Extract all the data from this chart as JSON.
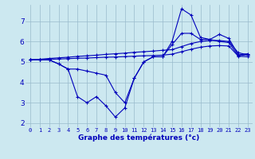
{
  "xlabel": "Graphe des températures (°c)",
  "bg_color": "#cce8f0",
  "line_color": "#0000bb",
  "grid_color": "#99bbcc",
  "ylim": [
    1.8,
    7.8
  ],
  "xlim": [
    -0.5,
    23.5
  ],
  "yticks": [
    2,
    3,
    4,
    5,
    6,
    7
  ],
  "x_labels": [
    "0",
    "1",
    "2",
    "3",
    "4",
    "5",
    "6",
    "7",
    "8",
    "9",
    "10",
    "11",
    "12",
    "13",
    "14",
    "15",
    "16",
    "17",
    "18",
    "19",
    "20",
    "21",
    "22",
    "23"
  ],
  "series": {
    "line1": [
      5.1,
      5.1,
      5.1,
      4.9,
      4.65,
      3.3,
      3.0,
      3.3,
      2.85,
      2.3,
      2.75,
      4.2,
      5.0,
      5.25,
      5.25,
      6.0,
      7.6,
      7.3,
      6.2,
      6.1,
      6.35,
      6.15,
      5.35,
      5.4
    ],
    "line2": [
      5.1,
      5.1,
      5.1,
      4.9,
      4.65,
      4.65,
      4.55,
      4.45,
      4.35,
      3.5,
      3.0,
      4.2,
      5.0,
      5.25,
      5.25,
      5.85,
      6.4,
      6.4,
      6.1,
      6.1,
      6.0,
      5.95,
      5.3,
      5.35
    ],
    "line3": [
      5.1,
      5.13,
      5.17,
      5.2,
      5.23,
      5.27,
      5.3,
      5.33,
      5.37,
      5.4,
      5.43,
      5.47,
      5.5,
      5.53,
      5.57,
      5.6,
      5.75,
      5.9,
      6.0,
      6.05,
      6.05,
      6.0,
      5.45,
      5.35
    ],
    "line4": [
      5.1,
      5.11,
      5.13,
      5.14,
      5.16,
      5.18,
      5.19,
      5.21,
      5.23,
      5.24,
      5.26,
      5.28,
      5.3,
      5.31,
      5.33,
      5.38,
      5.5,
      5.62,
      5.72,
      5.78,
      5.8,
      5.78,
      5.28,
      5.25
    ]
  }
}
